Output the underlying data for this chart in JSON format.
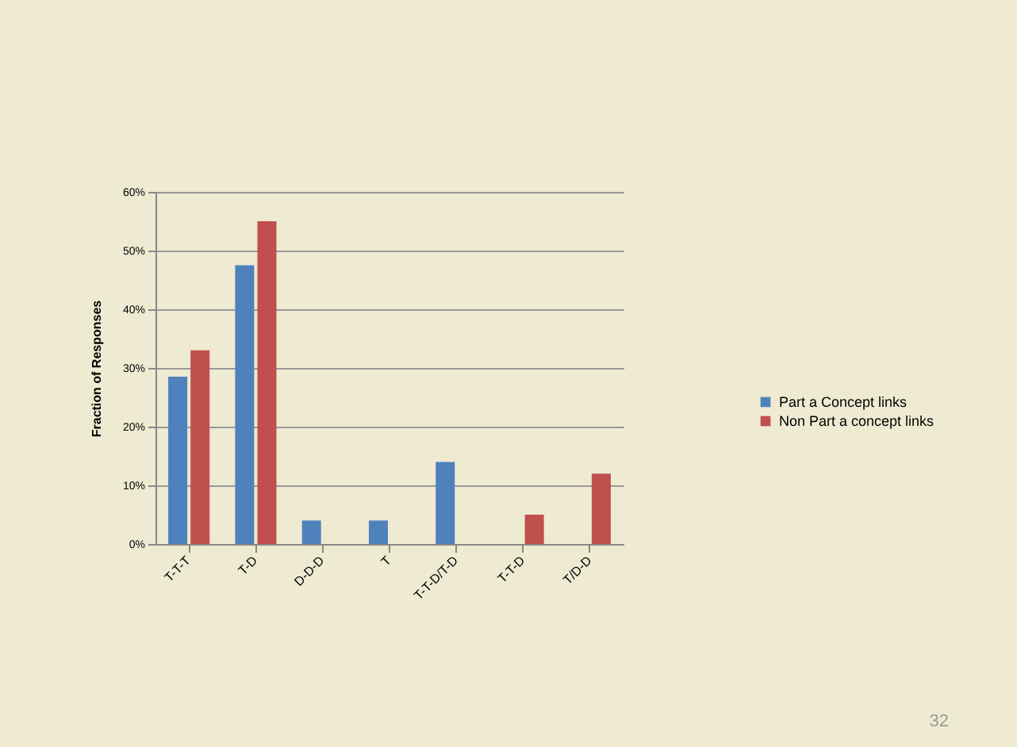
{
  "chart_data": {
    "type": "bar",
    "ylabel": "Fraction of Responses",
    "categories": [
      "T-T-T",
      "T-D",
      "D-D-D",
      "T",
      "T-T-D/T-D",
      "T-T-D",
      "T/D-D"
    ],
    "series": [
      {
        "name": "Part a Concept links",
        "color": "#4f81bd",
        "values": [
          28.5,
          47.5,
          4,
          4,
          14,
          null,
          null
        ]
      },
      {
        "name": "Non Part a concept links",
        "color": "#c0504d",
        "values": [
          33,
          55,
          null,
          null,
          null,
          5,
          12
        ]
      }
    ],
    "ylim": [
      0,
      60
    ],
    "yticks": [
      {
        "value": 0,
        "label": "0%"
      },
      {
        "value": 10,
        "label": "10%"
      },
      {
        "value": 20,
        "label": "20%"
      },
      {
        "value": 30,
        "label": "30%"
      },
      {
        "value": 40,
        "label": "40%"
      },
      {
        "value": 50,
        "label": "50%"
      },
      {
        "value": 60,
        "label": "60%"
      }
    ],
    "grid": "y",
    "legend": "right",
    "annotations": [
      "32"
    ]
  }
}
